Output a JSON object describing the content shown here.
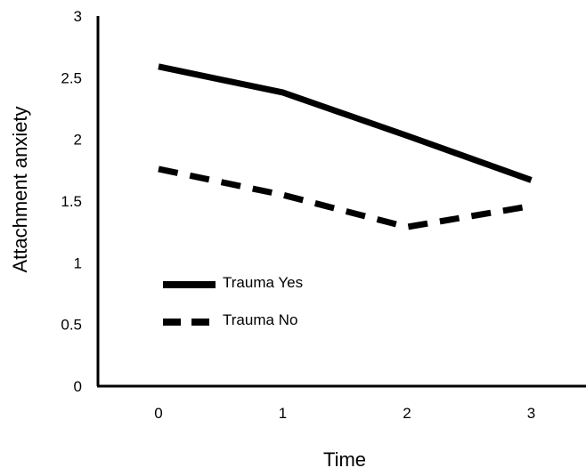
{
  "chart_data": {
    "type": "line",
    "xlabel": "Time",
    "ylabel": "Attachment anxiety",
    "x": [
      0,
      1,
      2,
      3
    ],
    "x_tick_labels": [
      "0",
      "1",
      "2",
      "3"
    ],
    "ylim": [
      0,
      3
    ],
    "y_ticks": [
      0,
      0.5,
      1,
      1.5,
      2,
      2.5,
      3
    ],
    "y_tick_labels": [
      "0",
      "0.5",
      "1",
      "1.5",
      "2",
      "2.5",
      "3"
    ],
    "grid": false,
    "legend_position": "left",
    "series": [
      {
        "name": "Trauma Yes",
        "style": "solid",
        "color": "#000000",
        "values": [
          2.59,
          2.38,
          2.03,
          1.67
        ]
      },
      {
        "name": "Trauma No",
        "style": "dashed",
        "color": "#000000",
        "values": [
          1.76,
          1.55,
          1.29,
          1.46
        ]
      }
    ]
  }
}
